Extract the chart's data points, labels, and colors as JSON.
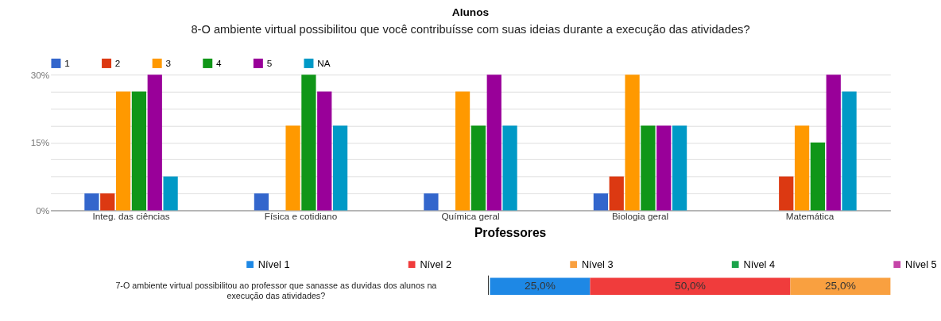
{
  "chart_data": [
    {
      "type": "bar",
      "title": "Alunos",
      "subtitle": "8-O ambiente virtual possibilitou que você contribuísse com suas ideias durante a execução das atividades?",
      "categories": [
        "Integ. das ciências",
        "Física e cotidiano",
        "Química geral",
        "Biologia geral",
        "Matemática"
      ],
      "series": [
        {
          "name": "1",
          "color": "#3366cc",
          "values": [
            3.75,
            3.75,
            3.75,
            3.75,
            0
          ]
        },
        {
          "name": "2",
          "color": "#dc3912",
          "values": [
            3.75,
            0,
            0,
            7.5,
            7.5
          ]
        },
        {
          "name": "3",
          "color": "#ff9900",
          "values": [
            26.25,
            18.75,
            26.25,
            30,
            18.75
          ]
        },
        {
          "name": "4",
          "color": "#109618",
          "values": [
            26.25,
            30,
            18.75,
            18.75,
            15
          ]
        },
        {
          "name": "5",
          "color": "#990099",
          "values": [
            30,
            26.25,
            30,
            18.75,
            30
          ]
        },
        {
          "name": "NA",
          "color": "#0099c6",
          "values": [
            7.5,
            18.75,
            18.75,
            18.75,
            26.25
          ]
        }
      ],
      "ylim": [
        0,
        30
      ],
      "yticks": [
        {
          "value": 0,
          "label": "0%"
        },
        {
          "value": 3.75,
          "label": null
        },
        {
          "value": 7.5,
          "label": null
        },
        {
          "value": 11.25,
          "label": null
        },
        {
          "value": 15,
          "label": "15%"
        },
        {
          "value": 18.75,
          "label": null
        },
        {
          "value": 22.5,
          "label": null
        },
        {
          "value": 26.25,
          "label": null
        },
        {
          "value": 30,
          "label": "30%"
        }
      ],
      "grid": "y",
      "legend": "top left"
    },
    {
      "type": "bar",
      "title": "Professores",
      "orientation": "horizontal",
      "stacked": true,
      "categories": [
        "7-O ambiente virtual possibilitou ao professor que sanasse as duvidas dos alunos na execução das atividades?"
      ],
      "series": [
        {
          "name": "Nível 1",
          "color": "#1e88e5",
          "values": [
            25
          ],
          "value_labels": [
            "25,0%"
          ]
        },
        {
          "name": "Nível 2",
          "color": "#f03c3c",
          "values": [
            50
          ],
          "value_labels": [
            "50,0%"
          ]
        },
        {
          "name": "Nível 3",
          "color": "#f9a040",
          "values": [
            25
          ],
          "value_labels": [
            "25,0%"
          ]
        },
        {
          "name": "Nível 4",
          "color": "#1aa34a",
          "values": [
            0
          ],
          "value_labels": [
            null
          ]
        },
        {
          "name": "Nível 5",
          "color": "#c545a8",
          "values": [
            0
          ],
          "value_labels": [
            null
          ]
        }
      ],
      "xlim": [
        0,
        100
      ],
      "tick_labels": "y",
      "grid": false,
      "legend": "top"
    }
  ]
}
